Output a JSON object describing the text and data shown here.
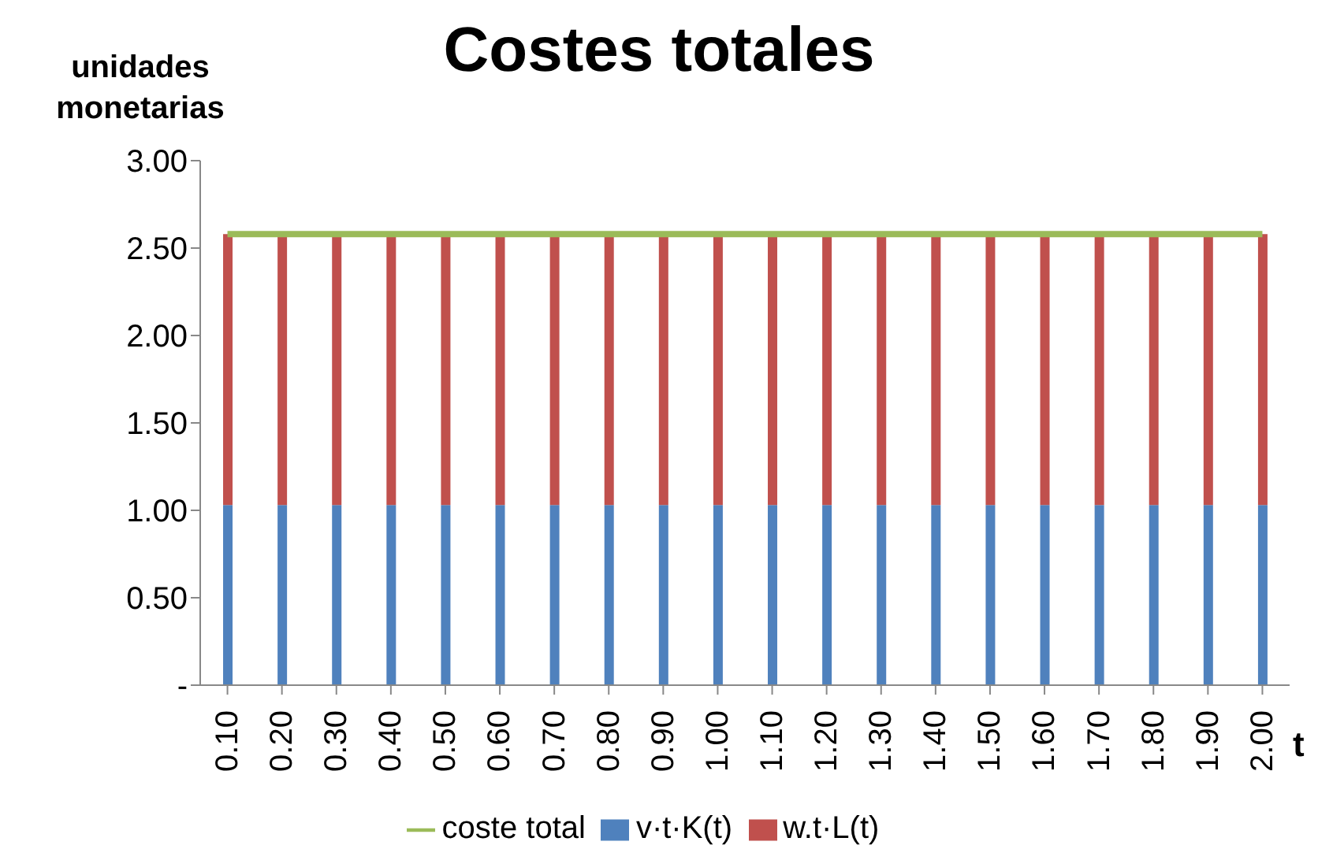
{
  "chart_data": {
    "type": "bar",
    "title": "Costes totales",
    "ylabel": "unidades monetarias",
    "xlabel": "t",
    "stacked": true,
    "categories": [
      "0.10",
      "0.20",
      "0.30",
      "0.40",
      "0.50",
      "0.60",
      "0.70",
      "0.80",
      "0.90",
      "1.00",
      "1.10",
      "1.20",
      "1.30",
      "1.40",
      "1.50",
      "1.60",
      "1.70",
      "1.80",
      "1.90",
      "2.00"
    ],
    "series": [
      {
        "name": "v·t·K(t)",
        "color": "#4f81bd",
        "values": [
          1.03,
          1.03,
          1.03,
          1.03,
          1.03,
          1.03,
          1.03,
          1.03,
          1.03,
          1.03,
          1.03,
          1.03,
          1.03,
          1.03,
          1.03,
          1.03,
          1.03,
          1.03,
          1.03,
          1.03
        ]
      },
      {
        "name": "w.t·L(t)",
        "color": "#c0504d",
        "values": [
          1.55,
          1.55,
          1.55,
          1.55,
          1.55,
          1.55,
          1.55,
          1.55,
          1.55,
          1.55,
          1.55,
          1.55,
          1.55,
          1.55,
          1.55,
          1.55,
          1.55,
          1.55,
          1.55,
          1.55
        ]
      },
      {
        "name": "coste total",
        "type": "line",
        "color": "#9bbb59",
        "values": [
          2.58,
          2.58,
          2.58,
          2.58,
          2.58,
          2.58,
          2.58,
          2.58,
          2.58,
          2.58,
          2.58,
          2.58,
          2.58,
          2.58,
          2.58,
          2.58,
          2.58,
          2.58,
          2.58,
          2.58
        ]
      }
    ],
    "ylim": [
      0,
      3
    ],
    "yticks": [
      {
        "value": 0,
        "label": "-"
      },
      {
        "value": 0.5,
        "label": "0.50"
      },
      {
        "value": 1,
        "label": "1.00"
      },
      {
        "value": 1.5,
        "label": "1.50"
      },
      {
        "value": 2,
        "label": "2.00"
      },
      {
        "value": 2.5,
        "label": "2.50"
      },
      {
        "value": 3,
        "label": "3.00"
      }
    ],
    "grid": false,
    "legend": "bottom",
    "marker": "none"
  }
}
